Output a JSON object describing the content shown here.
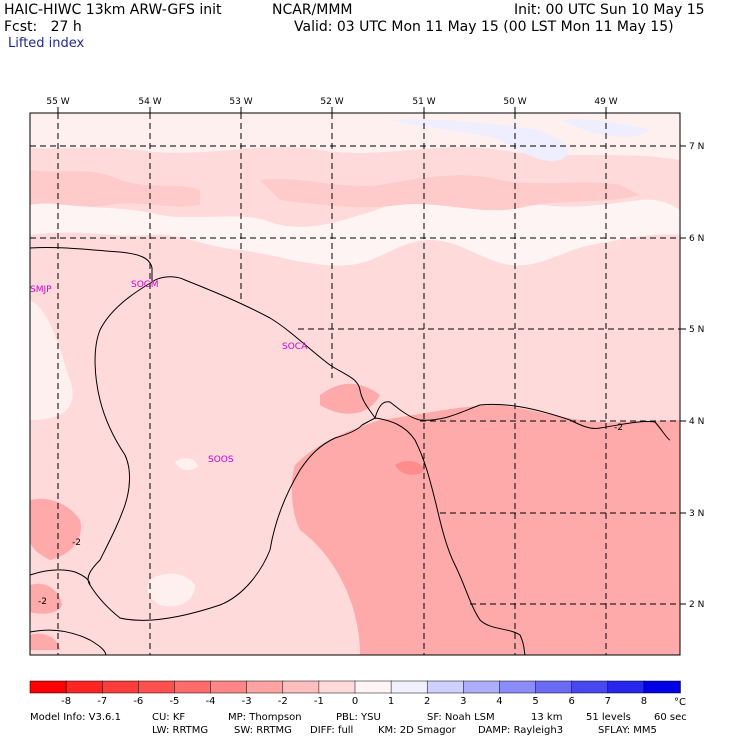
{
  "header": {
    "model": "HAIC-HIWC 13km ARW-GFS init",
    "org": "NCAR/MMM",
    "init": "Init: 00 UTC Sun 10 May 15",
    "fcst": "Fcst:   27 h",
    "valid": "Valid: 03 UTC Mon 11 May 15 (00 LST Mon 11 May 15)",
    "field": "Lifted index"
  },
  "map": {
    "lon_labels": [
      "55 W",
      "54 W",
      "53 W",
      "52 W",
      "51 W",
      "50 W",
      "49 W"
    ],
    "lat_labels": [
      "7 N",
      "6 N",
      "5 N",
      "4 N",
      "3 N",
      "2 N"
    ],
    "stations": [
      "SMJP",
      "SOGM",
      "SOCA",
      "SOOS"
    ],
    "contour_labels": [
      "-2",
      "-2",
      "-2"
    ]
  },
  "colorbar": {
    "ticks": [
      "-8",
      "-7",
      "-6",
      "-5",
      "-4",
      "-3",
      "-2",
      "-1",
      "0",
      "1",
      "2",
      "3",
      "4",
      "5",
      "6",
      "7",
      "8"
    ],
    "unit": "°C",
    "colors": [
      "#ff0000",
      "#ff2424",
      "#ff3c3c",
      "#ff5050",
      "#ff6a6a",
      "#ff8686",
      "#ffa2a2",
      "#ffbebe",
      "#ffdada",
      "#fff4f4",
      "#f0f0ff",
      "#d0d0ff",
      "#aeaefc",
      "#8c8cf8",
      "#6a6af4",
      "#4848f0",
      "#2626ec",
      "#0000e6"
    ]
  },
  "footer": {
    "line1": [
      "Model Info: V3.6.1",
      "CU: KF",
      "MP: Thompson",
      "PBL: YSU",
      "SF: Noah LSM",
      "13 km",
      "51 levels",
      "60 sec"
    ],
    "line2": [
      "LW: RRTMG",
      "SW: RRTMG",
      "DIFF: full",
      "KM: 2D Smagor",
      "DAMP: Rayleigh3",
      "SFLAY: MM5"
    ]
  }
}
